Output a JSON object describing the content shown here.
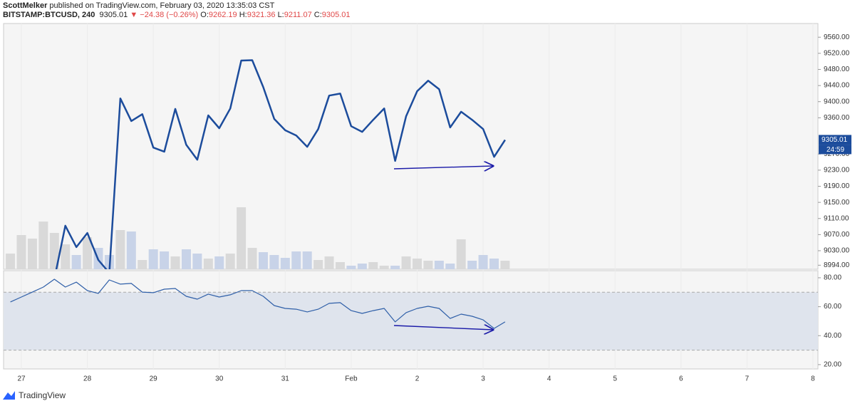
{
  "header": {
    "author": "ScottMelker",
    "published": "published on TradingView.com, February 03, 2020 13:35:03 CST",
    "symbol": "BITSTAMP:BTCUSD, 240",
    "last": "9305.01",
    "change": "▼ −24.38 (−0.26%)",
    "ohlc": [
      {
        "label": "O:",
        "value": "9262.19"
      },
      {
        "label": "H:",
        "value": "9321.36"
      },
      {
        "label": "L:",
        "value": "9211.07"
      },
      {
        "label": "C:",
        "value": "9305.01"
      }
    ]
  },
  "x_axis": {
    "categories": [
      null,
      "27",
      null,
      null,
      null,
      null,
      null,
      "28",
      null,
      null,
      null,
      null,
      null,
      "29",
      null,
      null,
      null,
      null,
      null,
      "30",
      null,
      null,
      null,
      null,
      null,
      "31",
      null,
      null,
      null,
      null,
      null,
      "Feb",
      null,
      null,
      null,
      null,
      null,
      "2",
      null,
      null,
      null,
      null,
      null,
      "3",
      null,
      null,
      null,
      null,
      null,
      "4",
      null,
      null,
      null,
      null,
      null,
      "5",
      null,
      null,
      null,
      null,
      null,
      "6",
      null,
      null,
      null,
      null,
      null,
      "7",
      null,
      null,
      null,
      null,
      null,
      "8"
    ]
  },
  "chart_data": [
    {
      "type": "line",
      "ylim": [
        8984,
        9594
      ],
      "yticks": [
        {
          "value": 9560,
          "label": "9560.00"
        },
        {
          "value": 9520,
          "label": "9520.00"
        },
        {
          "value": 9480,
          "label": "9480.00"
        },
        {
          "value": 9440,
          "label": "9440.00"
        },
        {
          "value": 9400,
          "label": "9400.00"
        },
        {
          "value": 9360,
          "label": "9360.00"
        },
        {
          "value": 9270,
          "label": "9270.00"
        },
        {
          "value": 9230,
          "label": "9230.00"
        },
        {
          "value": 9190,
          "label": "9190.00"
        },
        {
          "value": 9150,
          "label": "9150.00"
        },
        {
          "value": 9110,
          "label": "9110.00"
        },
        {
          "value": 9070,
          "label": "9070.00"
        },
        {
          "value": 9030,
          "label": "9030.00"
        },
        {
          "value": 8994,
          "label": "8994.00"
        }
      ],
      "series": [
        {
          "color": "#1c4c9c",
          "values": [
            null,
            null,
            null,
            null,
            8960,
            9092,
            9039,
            9074,
            9007,
            8975,
            9408,
            9352,
            9369,
            9286,
            9276,
            9382,
            9293,
            9256,
            9366,
            9334,
            9383,
            9502,
            9503,
            9436,
            9357,
            9329,
            9316,
            9288,
            9332,
            9415,
            9420,
            9339,
            9325,
            9355,
            9383,
            9253,
            9364,
            9426,
            9452,
            9431,
            9336,
            9375,
            9355,
            9332,
            9263,
            9305.01,
            null,
            null,
            null,
            null,
            null,
            null,
            null,
            null,
            null,
            null,
            null,
            null,
            null,
            null,
            null,
            null,
            null,
            null,
            null,
            null,
            null,
            null,
            null,
            null,
            null,
            null,
            null,
            null
          ]
        }
      ],
      "volume": {
        "ylim": [
          0,
          345
        ],
        "up_color": "#d9d9d9",
        "down_color": "#c8d3e8",
        "values": [
          22,
          48,
          43,
          67,
          51,
          35,
          20,
          45,
          30,
          20,
          55,
          53,
          13,
          28,
          25,
          18,
          28,
          22,
          15,
          18,
          22,
          87,
          30,
          24,
          20,
          16,
          25,
          25,
          13,
          18,
          10,
          5,
          8,
          10,
          5,
          5,
          18,
          15,
          12,
          12,
          8,
          42,
          12,
          20,
          15,
          12,
          null,
          null,
          null,
          null,
          null,
          null,
          null,
          null,
          null,
          null,
          null,
          null,
          null,
          null,
          null,
          null,
          null,
          null,
          null,
          null,
          null,
          null,
          null,
          null,
          null,
          null,
          null,
          null
        ]
      },
      "last_price": {
        "value": 9305.01,
        "label": "9305.01",
        "color": "#1c4c9c"
      },
      "countdown": "24:59"
    },
    {
      "type": "line",
      "ylim": [
        17,
        84.9
      ],
      "band": [
        30,
        70
      ],
      "yticks": [
        {
          "value": 80,
          "label": "80.00"
        },
        {
          "value": 60,
          "label": "60.00"
        },
        {
          "value": 40,
          "label": "40.00"
        },
        {
          "value": 20,
          "label": "20.00"
        }
      ],
      "series": [
        {
          "color": "#2f5fa8",
          "values": [
            63.3,
            66.7,
            70.1,
            73.6,
            79.0,
            73.6,
            77.0,
            71.1,
            69.2,
            78.5,
            75.6,
            76.1,
            70.1,
            69.7,
            72.1,
            72.6,
            67.2,
            65.2,
            68.7,
            66.7,
            68.2,
            71.1,
            71.1,
            67.2,
            60.8,
            58.8,
            58.3,
            56.4,
            58.3,
            62.3,
            62.8,
            57.3,
            55.4,
            57.3,
            58.8,
            49.5,
            55.9,
            58.8,
            60.3,
            58.8,
            51.9,
            54.9,
            53.4,
            50.9,
            45.0,
            49.5,
            null,
            null,
            null,
            null,
            null,
            null,
            null,
            null,
            null,
            null,
            null,
            null,
            null,
            null,
            null,
            null,
            null,
            null,
            null,
            null,
            null,
            null,
            null,
            null,
            null,
            null,
            null,
            null
          ]
        }
      ]
    }
  ],
  "footer": {
    "brand": "TradingView"
  }
}
